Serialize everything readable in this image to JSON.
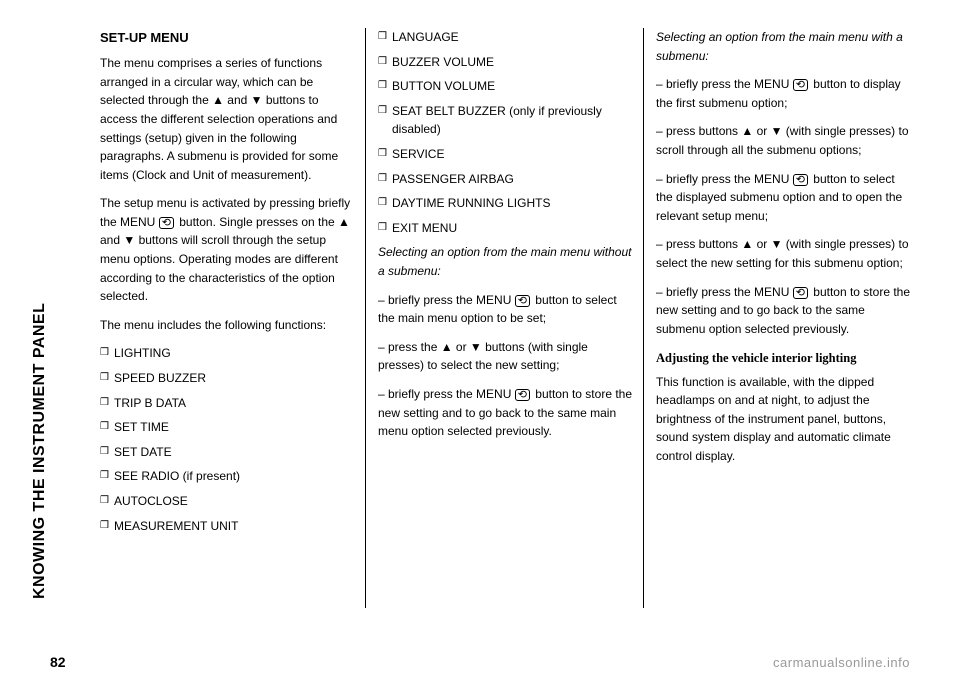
{
  "vertical_title": "KNOWING THE INSTRUMENT PANEL",
  "page_number": "82",
  "watermark": "carmanualsonline.info",
  "col1": {
    "title": "SET-UP MENU",
    "p1": "The menu comprises a series of functions arranged in a circular way, which can be selected through the ▲ and ▼ buttons to access the different selection operations and settings (setup) given in the following paragraphs. A submenu is provided for some items (Clock and Unit of measurement).",
    "p2_a": "The setup menu is activated by pressing briefly the MENU ",
    "p2_b": " button. Single presses on the ▲ and ▼ buttons will scroll through the setup menu options. Operating modes are different according to the characteristics of the option selected.",
    "p3": "The menu includes the following functions:",
    "items": [
      "LIGHTING",
      "SPEED BUZZER",
      "TRIP B DATA",
      "SET TIME",
      "SET DATE",
      "SEE RADIO (if present)",
      "AUTOCLOSE",
      "MEASUREMENT UNIT"
    ]
  },
  "col2": {
    "items": [
      "LANGUAGE",
      "BUZZER VOLUME",
      "BUTTON VOLUME",
      "SEAT BELT BUZZER (only if previously disabled)",
      "SERVICE",
      "PASSENGER AIRBAG",
      "DAYTIME RUNNING LIGHTS",
      "EXIT MENU"
    ],
    "sub_italic": "Selecting an option from the main menu without a submenu:",
    "d1_a": "– briefly press the MENU ",
    "d1_b": " button to select the main menu option to be set;",
    "d2": "– press the ▲ or ▼ buttons (with single presses) to select the new setting;",
    "d3_a": "– briefly press the MENU ",
    "d3_b": " button to store the new setting and to go back to the same main menu option selected previously."
  },
  "col3": {
    "sub_italic": "Selecting an option from the main menu with a submenu:",
    "d1_a": "– briefly press the MENU ",
    "d1_b": " button to display the first submenu option;",
    "d2": "– press buttons ▲ or ▼ (with single presses) to scroll through all the submenu options;",
    "d3_a": "– briefly press the MENU ",
    "d3_b": " button to select the displayed submenu option and to open the relevant setup menu;",
    "d4": "– press buttons ▲ or ▼ (with single presses) to select the new setting for this submenu option;",
    "d5_a": "– briefly press the MENU ",
    "d5_b": " button to store the new setting and to go back to the same submenu option selected previously.",
    "sub_title": "Adjusting the vehicle interior lighting",
    "p1": "This function is available, with the dipped headlamps on and at night, to adjust the brightness of the instrument panel, buttons, sound system display and automatic climate control display."
  }
}
